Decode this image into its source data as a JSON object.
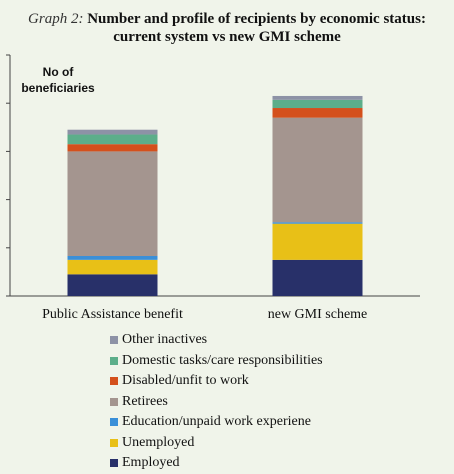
{
  "title_prefix": "Graph 2:",
  "title": "Number and profile of recipients by economic status: current system vs new GMI scheme",
  "chart_data": {
    "type": "bar",
    "stacked": true,
    "categories": [
      "Public Assistance benefit",
      "new GMI scheme"
    ],
    "ylabel": "No of beneficiaries",
    "ylim": [
      0,
      500
    ],
    "ytick_labels": false,
    "grid": false,
    "legend_position": "bottom",
    "series": [
      {
        "name": "Employed",
        "color": "#283069",
        "values": [
          45,
          75
        ]
      },
      {
        "name": "Unemployed",
        "color": "#e8c017",
        "values": [
          30,
          75
        ]
      },
      {
        "name": "Education/unpaid work experiene",
        "color": "#3a8fd8",
        "values": [
          8,
          3
        ]
      },
      {
        "name": "Retirees",
        "color": "#a4958f",
        "values": [
          217,
          217
        ]
      },
      {
        "name": "Disabled/unfit to work",
        "color": "#d4501c",
        "values": [
          15,
          20
        ]
      },
      {
        "name": "Domestic tasks/care responsibilities",
        "color": "#5cae8a",
        "values": [
          20,
          17
        ]
      },
      {
        "name": "Other inactives",
        "color": "#8d92a6",
        "values": [
          10,
          8
        ]
      }
    ]
  }
}
